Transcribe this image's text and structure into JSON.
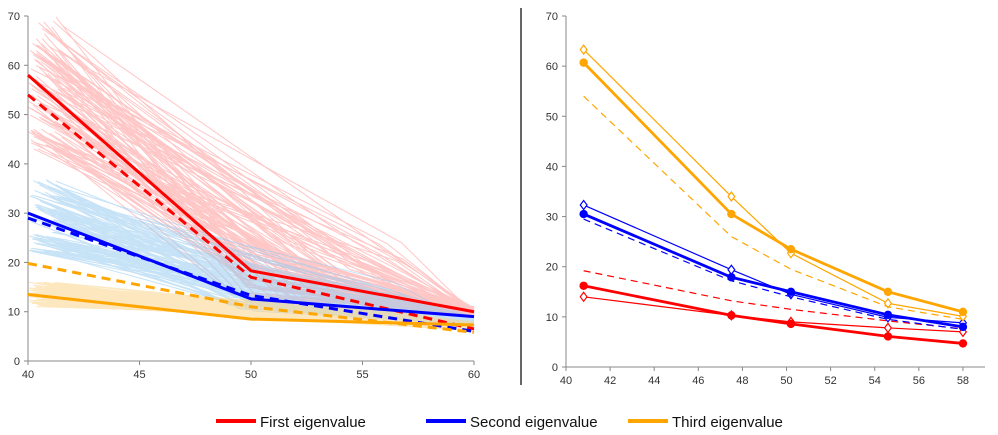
{
  "chart_data": [
    {
      "type": "line",
      "xlim": [
        40,
        60
      ],
      "ylim": [
        0,
        70
      ],
      "x_ticks": [
        40,
        45,
        50,
        55,
        60
      ],
      "y_ticks": [
        0,
        10,
        20,
        30,
        40,
        50,
        60,
        70
      ],
      "grid": false,
      "series": [
        {
          "name": "First eigenvalue",
          "style": "solid",
          "color": "#ff0000",
          "x": [
            40,
            50,
            60
          ],
          "y": [
            58,
            18.3,
            10
          ]
        },
        {
          "name": "First eigenvalue",
          "style": "dashed",
          "color": "#ff0000",
          "x": [
            40,
            50,
            60
          ],
          "y": [
            54,
            17,
            6.5
          ]
        },
        {
          "name": "Second eigenvalue",
          "style": "solid",
          "color": "#0000ff",
          "x": [
            40,
            50,
            60
          ],
          "y": [
            30,
            12.6,
            9
          ]
        },
        {
          "name": "Second eigenvalue",
          "style": "dashed",
          "color": "#0000ff",
          "x": [
            40,
            50,
            60
          ],
          "y": [
            29,
            13.3,
            6
          ]
        },
        {
          "name": "Third eigenvalue",
          "style": "solid",
          "color": "#ffa500",
          "x": [
            40,
            50,
            60
          ],
          "y": [
            13.5,
            8.5,
            7.3
          ]
        },
        {
          "name": "Third eigenvalue",
          "style": "dashed",
          "color": "#ffa500",
          "x": [
            40,
            50,
            60
          ],
          "y": [
            19.8,
            11,
            5.8
          ]
        }
      ],
      "bands": [
        {
          "color": "#ff9999",
          "description": "first eigenvalue samples",
          "y_start_range": [
            43,
            70
          ],
          "y_end": 10
        },
        {
          "color": "#99ccf0",
          "description": "second eigenvalue samples",
          "y_start_range": [
            22,
            37
          ],
          "y_end": 8
        },
        {
          "color": "#fbd48a",
          "description": "third eigenvalue samples",
          "y_start_range": [
            11,
            16
          ],
          "y_end": 7
        }
      ]
    },
    {
      "type": "line",
      "xlim": [
        40,
        59
      ],
      "ylim": [
        0,
        70
      ],
      "x_ticks": [
        40,
        42,
        44,
        46,
        48,
        50,
        52,
        54,
        56,
        58
      ],
      "y_ticks": [
        0,
        10,
        20,
        30,
        40,
        50,
        60,
        70
      ],
      "grid": false,
      "x": [
        40.8,
        47.5,
        50.2,
        54.6,
        58
      ],
      "series": [
        {
          "name": "First eigenvalue",
          "style": "thick-filled-circle",
          "color": "#ff0000",
          "y": [
            16.2,
            10.3,
            8.6,
            6.1,
            4.7
          ]
        },
        {
          "name": "First eigenvalue",
          "style": "thin-open-diamond",
          "color": "#ff0000",
          "y": [
            14,
            10.3,
            9,
            7.8,
            7
          ]
        },
        {
          "name": "First eigenvalue",
          "style": "dashed",
          "color": "#ff0000",
          "y": [
            19.2,
            13.2,
            11.5,
            9.2,
            7.6
          ]
        },
        {
          "name": "Second eigenvalue",
          "style": "thick-filled-circle",
          "color": "#0000ff",
          "y": [
            30.5,
            17.9,
            15,
            10.4,
            8
          ]
        },
        {
          "name": "Second eigenvalue",
          "style": "thin-open-diamond",
          "color": "#0000ff",
          "y": [
            32.3,
            19.4,
            14.5,
            9.9,
            8.8
          ]
        },
        {
          "name": "Second eigenvalue",
          "style": "dashed",
          "color": "#0000ff",
          "y": [
            29.5,
            17.2,
            14,
            9.5,
            7.5
          ]
        },
        {
          "name": "Third eigenvalue",
          "style": "thick-filled-circle",
          "color": "#ffa500",
          "y": [
            60.7,
            30.5,
            23.5,
            15,
            11
          ]
        },
        {
          "name": "Third eigenvalue",
          "style": "thin-open-diamond",
          "color": "#ffa500",
          "y": [
            63.3,
            34,
            22.7,
            12.7,
            10.1
          ]
        },
        {
          "name": "Third eigenvalue",
          "style": "dashed",
          "color": "#ffa500",
          "y": [
            54,
            26,
            19.5,
            12,
            9.5
          ]
        }
      ]
    }
  ],
  "legend": {
    "placement": "bottom",
    "items": [
      {
        "label": "First eigenvalue",
        "color": "#ff0000"
      },
      {
        "label": "Second eigenvalue",
        "color": "#0000ff"
      },
      {
        "label": "Third eigenvalue",
        "color": "#ffa500"
      }
    ]
  }
}
